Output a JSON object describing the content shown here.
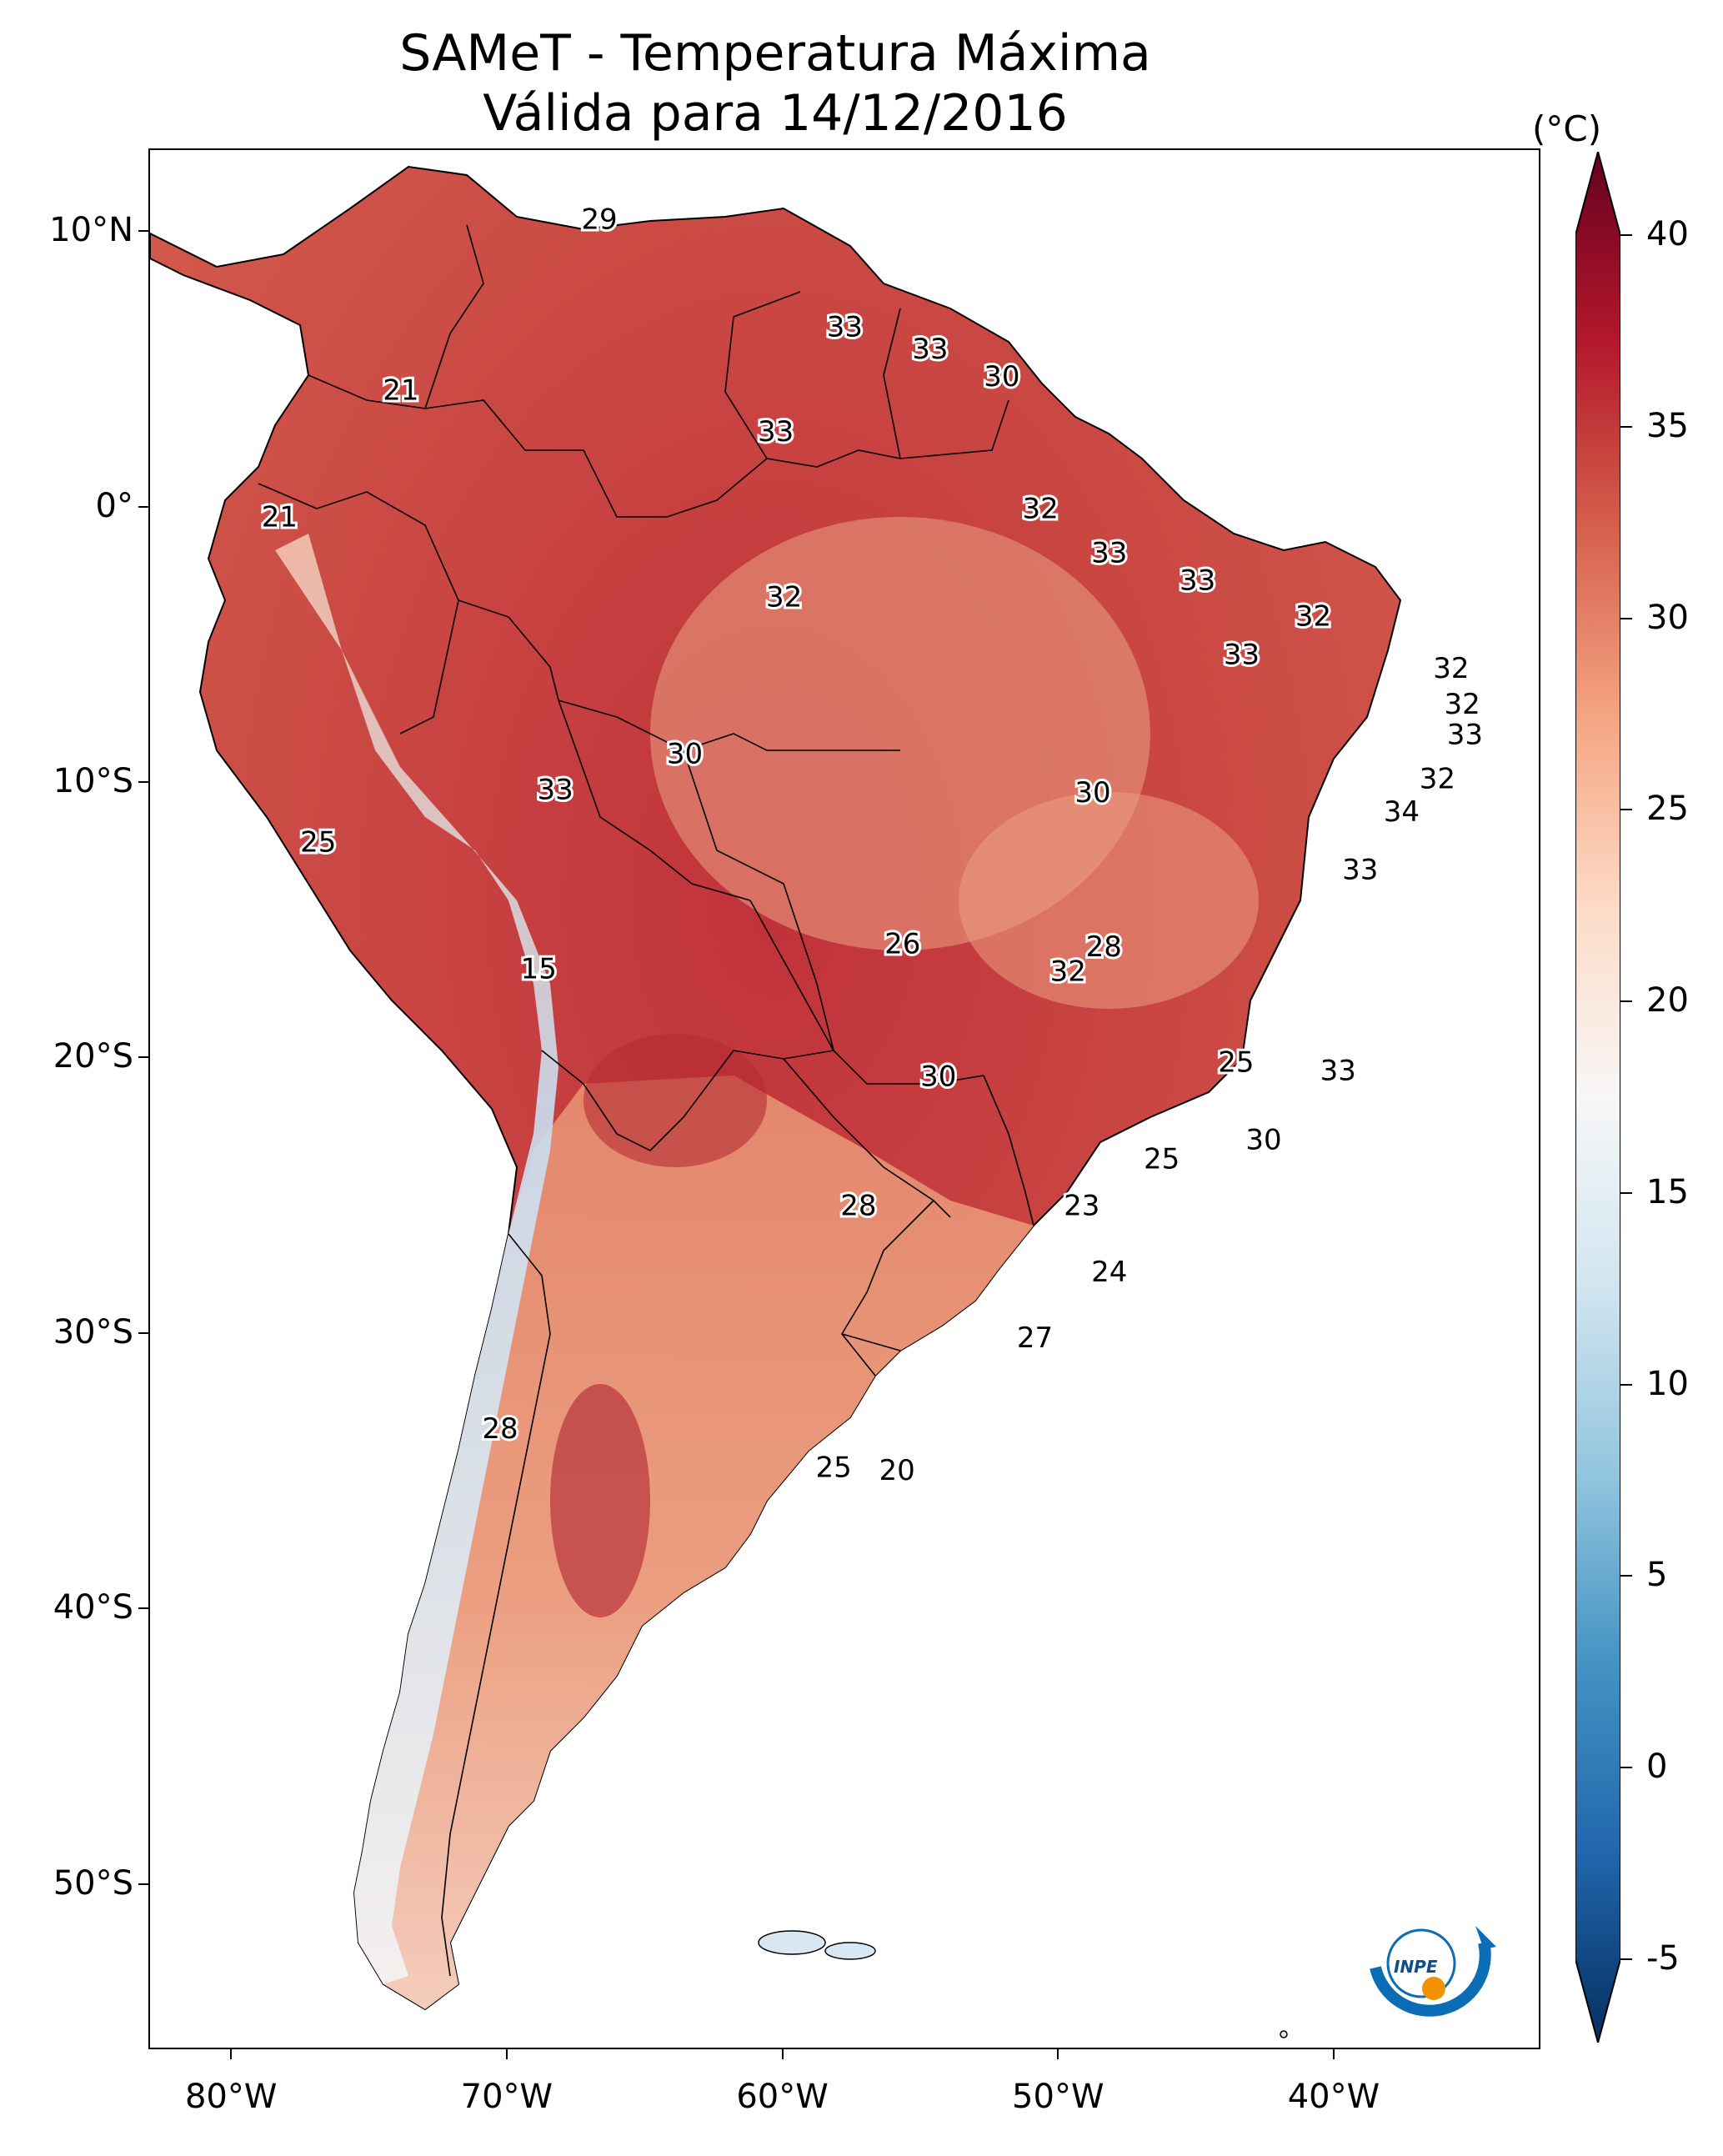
{
  "title_line1": "SAMeT - Temperatura Máxima",
  "title_line2": "Válida para 14/12/2016",
  "unit": "(°C)",
  "y_axis_labels": [
    "10°N",
    "0°",
    "10°S",
    "20°S",
    "30°S",
    "40°S",
    "50°S"
  ],
  "x_axis_labels": [
    "80°W",
    "70°W",
    "60°W",
    "50°W",
    "40°W"
  ],
  "colorbar": {
    "ticks": [
      "40",
      "35",
      "30",
      "25",
      "20",
      "15",
      "10",
      "5",
      "0",
      "-5"
    ],
    "range": [
      -5,
      40
    ],
    "colors": [
      "#053061",
      "#2166ac",
      "#4393c3",
      "#92c5de",
      "#d1e5f0",
      "#f7f7f7",
      "#fddbc7",
      "#f4a582",
      "#d6604d",
      "#b2182b",
      "#67001f"
    ]
  },
  "map": {
    "ocean_color": "#ffffff",
    "contour_labels": [
      {
        "text": "29",
        "lon": -66.7,
        "lat": 10.5
      },
      {
        "text": "33",
        "lon": -57.8,
        "lat": 6.6
      },
      {
        "text": "33",
        "lon": -54.7,
        "lat": 5.8
      },
      {
        "text": "30",
        "lon": -52.1,
        "lat": 4.8
      },
      {
        "text": "21",
        "lon": -73.9,
        "lat": 4.3
      },
      {
        "text": "33",
        "lon": -60.3,
        "lat": 2.8
      },
      {
        "text": "21",
        "lon": -78.3,
        "lat": -0.3
      },
      {
        "text": "32",
        "lon": -50.7,
        "lat": 0.0
      },
      {
        "text": "33",
        "lon": -48.2,
        "lat": -1.6
      },
      {
        "text": "32",
        "lon": -60.0,
        "lat": -3.2
      },
      {
        "text": "33",
        "lon": -45.0,
        "lat": -2.6
      },
      {
        "text": "32",
        "lon": -40.8,
        "lat": -3.9
      },
      {
        "text": "33",
        "lon": -43.4,
        "lat": -5.3
      },
      {
        "text": "32",
        "lon": -35.8,
        "lat": -5.8
      },
      {
        "text": "32",
        "lon": -35.4,
        "lat": -7.1
      },
      {
        "text": "33",
        "lon": -35.3,
        "lat": -8.2
      },
      {
        "text": "30",
        "lon": -63.6,
        "lat": -8.9
      },
      {
        "text": "33",
        "lon": -68.3,
        "lat": -10.2
      },
      {
        "text": "30",
        "lon": -48.8,
        "lat": -10.3
      },
      {
        "text": "32",
        "lon": -36.3,
        "lat": -9.8
      },
      {
        "text": "34",
        "lon": -37.6,
        "lat": -11.0
      },
      {
        "text": "25",
        "lon": -76.9,
        "lat": -12.1
      },
      {
        "text": "33",
        "lon": -39.1,
        "lat": -13.1
      },
      {
        "text": "26",
        "lon": -55.7,
        "lat": -15.8
      },
      {
        "text": "28",
        "lon": -48.4,
        "lat": -15.9
      },
      {
        "text": "32",
        "lon": -49.7,
        "lat": -16.8
      },
      {
        "text": "15",
        "lon": -68.9,
        "lat": -16.7
      },
      {
        "text": "25",
        "lon": -43.6,
        "lat": -20.1
      },
      {
        "text": "33",
        "lon": -39.9,
        "lat": -20.4
      },
      {
        "text": "30",
        "lon": -54.4,
        "lat": -20.6
      },
      {
        "text": "30",
        "lon": -42.6,
        "lat": -22.9
      },
      {
        "text": "25",
        "lon": -46.3,
        "lat": -23.6
      },
      {
        "text": "28",
        "lon": -57.3,
        "lat": -25.3
      },
      {
        "text": "23",
        "lon": -49.2,
        "lat": -25.3
      },
      {
        "text": "24",
        "lon": -48.2,
        "lat": -27.7
      },
      {
        "text": "27",
        "lon": -50.9,
        "lat": -30.1
      },
      {
        "text": "28",
        "lon": -70.3,
        "lat": -33.4
      },
      {
        "text": "25",
        "lon": -58.2,
        "lat": -34.8
      },
      {
        "text": "20",
        "lon": -55.9,
        "lat": -34.9
      }
    ]
  },
  "logo": {
    "text": "INPE"
  }
}
